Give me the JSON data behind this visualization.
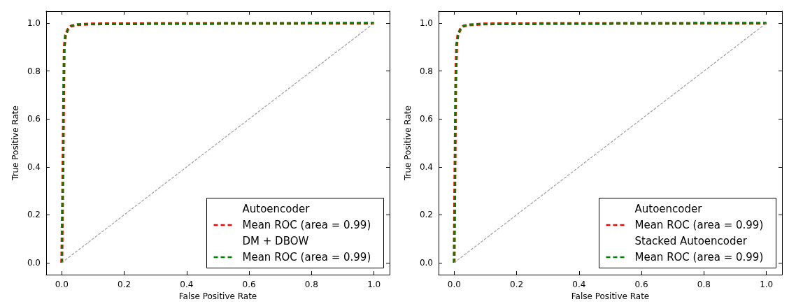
{
  "chart_data": [
    {
      "type": "line",
      "xlabel": "False Positive Rate",
      "ylabel": "True Positive Rate",
      "xlim": [
        -0.05,
        1.05
      ],
      "ylim": [
        -0.05,
        1.05
      ],
      "xticks": [
        {
          "value": 0,
          "label": "0.0"
        },
        {
          "value": 0.2,
          "label": "0.2"
        },
        {
          "value": 0.4,
          "label": "0.4"
        },
        {
          "value": 0.6,
          "label": "0.6"
        },
        {
          "value": 0.8,
          "label": "0.8"
        },
        {
          "value": 1,
          "label": "1.0"
        }
      ],
      "yticks": [
        {
          "value": 0,
          "label": "0.0"
        },
        {
          "value": 0.2,
          "label": "0.2"
        },
        {
          "value": 0.4,
          "label": "0.4"
        },
        {
          "value": 0.6,
          "label": "0.6"
        },
        {
          "value": 0.8,
          "label": "0.8"
        },
        {
          "value": 1,
          "label": "1.0"
        }
      ],
      "grid": false,
      "legend": "bottom right",
      "marker": "none",
      "line_style": "dashed",
      "series": [
        {
          "name": "Autoencoder"
        },
        {
          "name": "Mean ROC (area = 0.99)",
          "color": "#ff0000",
          "x": [
            0,
            0.004,
            0.006,
            0.008,
            0.012,
            0.02,
            0.03,
            0.05,
            0.1,
            0.3,
            1
          ],
          "values": [
            0,
            0.4,
            0.7,
            0.9,
            0.95,
            0.975,
            0.988,
            0.994,
            0.997,
            0.998,
            1
          ]
        },
        {
          "name": "DM + DBOW"
        },
        {
          "name": "Mean ROC (area = 0.99)",
          "color": "#008000",
          "x": [
            0,
            0.004,
            0.006,
            0.008,
            0.012,
            0.02,
            0.03,
            0.05,
            0.1,
            0.3,
            1
          ],
          "values": [
            0,
            0.4,
            0.7,
            0.9,
            0.95,
            0.975,
            0.988,
            0.994,
            0.997,
            0.998,
            1
          ]
        },
        {
          "color": "#a0a0a0",
          "x": [
            0,
            1
          ],
          "values": [
            0,
            1
          ]
        }
      ]
    },
    {
      "type": "line",
      "xlabel": "False Positive Rate",
      "ylabel": "True Positive Rate",
      "xlim": [
        -0.05,
        1.05
      ],
      "ylim": [
        -0.05,
        1.05
      ],
      "xticks": [
        {
          "value": 0,
          "label": "0.0"
        },
        {
          "value": 0.2,
          "label": "0.2"
        },
        {
          "value": 0.4,
          "label": "0.4"
        },
        {
          "value": 0.6,
          "label": "0.6"
        },
        {
          "value": 0.8,
          "label": "0.8"
        },
        {
          "value": 1,
          "label": "1.0"
        }
      ],
      "yticks": [
        {
          "value": 0,
          "label": "0.0"
        },
        {
          "value": 0.2,
          "label": "0.2"
        },
        {
          "value": 0.4,
          "label": "0.4"
        },
        {
          "value": 0.6,
          "label": "0.6"
        },
        {
          "value": 0.8,
          "label": "0.8"
        },
        {
          "value": 1,
          "label": "1.0"
        }
      ],
      "grid": false,
      "legend": "bottom right",
      "marker": "none",
      "line_style": "dashed",
      "series": [
        {
          "name": "Autoencoder"
        },
        {
          "name": "Mean ROC (area = 0.99)",
          "color": "#ff0000",
          "x": [
            0,
            0.003,
            0.005,
            0.008,
            0.012,
            0.02,
            0.03,
            0.05,
            0.1,
            0.3,
            1
          ],
          "values": [
            0,
            0.45,
            0.75,
            0.91,
            0.95,
            0.975,
            0.988,
            0.993,
            0.997,
            0.998,
            1
          ]
        },
        {
          "name": "Stacked Autoencoder"
        },
        {
          "name": "Mean ROC (area = 0.99)",
          "color": "#008000",
          "x": [
            0,
            0.003,
            0.005,
            0.008,
            0.012,
            0.02,
            0.03,
            0.05,
            0.1,
            0.3,
            1
          ],
          "values": [
            0,
            0.45,
            0.75,
            0.91,
            0.95,
            0.975,
            0.988,
            0.993,
            0.997,
            0.998,
            1
          ]
        },
        {
          "color": "#a0a0a0",
          "x": [
            0,
            1
          ],
          "values": [
            0,
            1
          ]
        }
      ]
    }
  ]
}
